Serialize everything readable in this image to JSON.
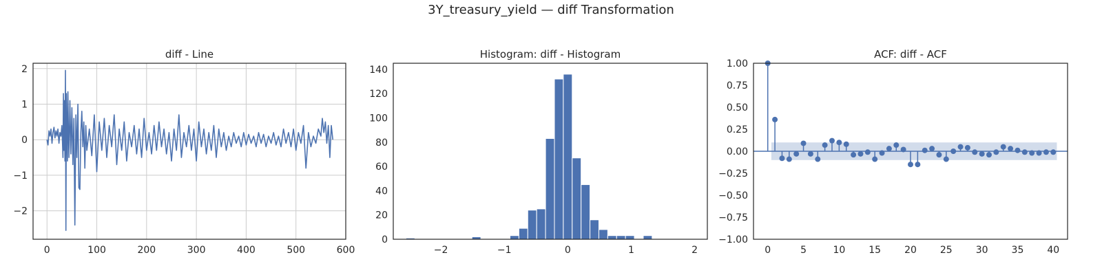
{
  "figure": {
    "suptitle": "3Y_treasury_yield — diff Transformation"
  },
  "colors": {
    "series": "#4c72b0",
    "band": "#4c72b0",
    "grid": "#cccccc",
    "axis": "#262626"
  },
  "chart_data": [
    {
      "type": "line",
      "title": "diff - Line",
      "xlabel": "",
      "ylabel": "",
      "xlim": [
        -28,
        600
      ],
      "ylim": [
        -2.8,
        2.15
      ],
      "xticks": [
        0,
        100,
        200,
        300,
        400,
        500,
        600
      ],
      "yticks": [
        -2,
        -1,
        0,
        1,
        2
      ],
      "grid": true,
      "series": [
        {
          "x": [
            0,
            2,
            4,
            6,
            8,
            10,
            12,
            14,
            16,
            18,
            20,
            22,
            24,
            26,
            28,
            30,
            32,
            33,
            34,
            35,
            36,
            37,
            38,
            39,
            40,
            41,
            42,
            43,
            44,
            46,
            48,
            50,
            52,
            54,
            56,
            58,
            60,
            62,
            64,
            66,
            68,
            70,
            72,
            74,
            76,
            78,
            80,
            85,
            90,
            95,
            100,
            105,
            110,
            115,
            120,
            125,
            130,
            135,
            140,
            145,
            150,
            155,
            160,
            165,
            170,
            175,
            180,
            185,
            190,
            195,
            200,
            205,
            210,
            215,
            220,
            225,
            230,
            235,
            240,
            245,
            250,
            255,
            260,
            265,
            270,
            275,
            280,
            285,
            290,
            295,
            300,
            305,
            310,
            315,
            320,
            325,
            330,
            335,
            340,
            345,
            350,
            355,
            360,
            365,
            370,
            375,
            380,
            385,
            390,
            395,
            400,
            405,
            410,
            415,
            420,
            425,
            430,
            435,
            440,
            445,
            450,
            455,
            460,
            465,
            470,
            475,
            480,
            485,
            490,
            495,
            500,
            505,
            510,
            515,
            520,
            525,
            530,
            535,
            540,
            545,
            550,
            553,
            556,
            559,
            562,
            565,
            568,
            571,
            574
          ],
          "y": [
            0,
            -0.15,
            0.25,
            0.1,
            0.3,
            -0.1,
            0.2,
            0.35,
            0.05,
            0.25,
            0.1,
            0.3,
            -0.1,
            0.2,
            0.1,
            0.4,
            -0.5,
            1.3,
            -0.3,
            1.1,
            -0.6,
            1.95,
            -2.55,
            1.3,
            0.2,
            -0.6,
            1.35,
            0.3,
            -0.5,
            1.1,
            -0.4,
            0.9,
            -0.7,
            0.6,
            -2.4,
            0.7,
            -0.5,
            1.0,
            -1.35,
            -1.4,
            0.2,
            0.8,
            -0.2,
            0.5,
            -0.8,
            0.4,
            -0.3,
            0.3,
            -0.45,
            0.7,
            -0.9,
            0.5,
            -0.3,
            0.6,
            -0.5,
            0.4,
            -0.2,
            0.7,
            -0.7,
            0.3,
            -0.3,
            0.5,
            -0.6,
            0.2,
            -0.2,
            0.4,
            -0.4,
            0.3,
            -0.5,
            0.6,
            -0.3,
            0.2,
            -0.4,
            0.4,
            -0.3,
            0.5,
            -0.2,
            0.3,
            -0.4,
            0.2,
            -0.6,
            0.3,
            -0.3,
            0.7,
            -0.5,
            0.2,
            -0.2,
            0.4,
            -0.3,
            0.3,
            -0.6,
            0.5,
            -0.2,
            0.3,
            -0.4,
            0.2,
            -0.3,
            0.4,
            -0.5,
            0.3,
            -0.2,
            0.2,
            -0.3,
            0.1,
            -0.2,
            0.2,
            -0.1,
            0.1,
            -0.2,
            0.2,
            -0.15,
            0.15,
            -0.1,
            0.1,
            -0.2,
            0.2,
            -0.1,
            0.15,
            -0.2,
            0.1,
            -0.1,
            0.2,
            -0.15,
            0.1,
            -0.2,
            0.3,
            -0.1,
            0.2,
            -0.2,
            0.3,
            -0.3,
            0.2,
            -0.1,
            0.4,
            -0.8,
            0.2,
            -0.2,
            0.1,
            -0.1,
            0.3,
            0.1,
            0.6,
            0.2,
            0.5,
            -0.1,
            0.4,
            -0.5,
            0.4,
            0.0
          ]
        }
      ]
    },
    {
      "type": "bar",
      "title": "Histogram: diff - Histogram",
      "xlabel": "",
      "ylabel": "",
      "xlim": [
        -2.75,
        2.2
      ],
      "ylim": [
        0,
        145
      ],
      "xticks": [
        -2,
        -1,
        0,
        1,
        2
      ],
      "yticks": [
        0,
        20,
        40,
        60,
        80,
        100,
        120,
        140
      ],
      "grid": false,
      "bin_width": 0.14,
      "bin_starts": [
        -2.55,
        -1.51,
        -0.91,
        -0.77,
        -0.63,
        -0.49,
        -0.35,
        -0.21,
        -0.07,
        0.07,
        0.21,
        0.35,
        0.49,
        0.63,
        0.77,
        0.91,
        1.19
      ],
      "values": [
        1,
        2,
        3,
        9,
        24,
        25,
        83,
        132,
        136,
        67,
        45,
        16,
        8,
        3,
        3,
        3,
        3
      ]
    },
    {
      "type": "scatter",
      "title": "ACF: diff - ACF",
      "xlabel": "",
      "ylabel": "",
      "xlim": [
        -2,
        42
      ],
      "ylim": [
        -1.0,
        1.0
      ],
      "xticks": [
        0,
        5,
        10,
        15,
        20,
        25,
        30,
        35,
        40
      ],
      "yticks": [
        -1.0,
        -0.75,
        -0.5,
        -0.25,
        0.0,
        0.25,
        0.5,
        0.75,
        1.0
      ],
      "ytick_labels": [
        "−1.00",
        "−0.75",
        "−0.50",
        "−0.25",
        "0.00",
        "0.25",
        "0.50",
        "0.75",
        "1.00"
      ],
      "grid": false,
      "confidence_band": 0.1,
      "lags": [
        0,
        1,
        2,
        3,
        4,
        5,
        6,
        7,
        8,
        9,
        10,
        11,
        12,
        13,
        14,
        15,
        16,
        17,
        18,
        19,
        20,
        21,
        22,
        23,
        24,
        25,
        26,
        27,
        28,
        29,
        30,
        31,
        32,
        33,
        34,
        35,
        36,
        37,
        38,
        39,
        40
      ],
      "values": [
        1.0,
        0.36,
        -0.08,
        -0.09,
        -0.03,
        0.09,
        -0.03,
        -0.09,
        0.07,
        0.12,
        0.1,
        0.08,
        -0.04,
        -0.03,
        -0.01,
        -0.09,
        -0.02,
        0.03,
        0.07,
        0.02,
        -0.15,
        -0.15,
        0.01,
        0.03,
        -0.04,
        -0.09,
        0.0,
        0.05,
        0.04,
        -0.01,
        -0.03,
        -0.04,
        -0.01,
        0.05,
        0.03,
        0.01,
        -0.01,
        -0.02,
        -0.02,
        -0.01,
        -0.01
      ]
    }
  ]
}
